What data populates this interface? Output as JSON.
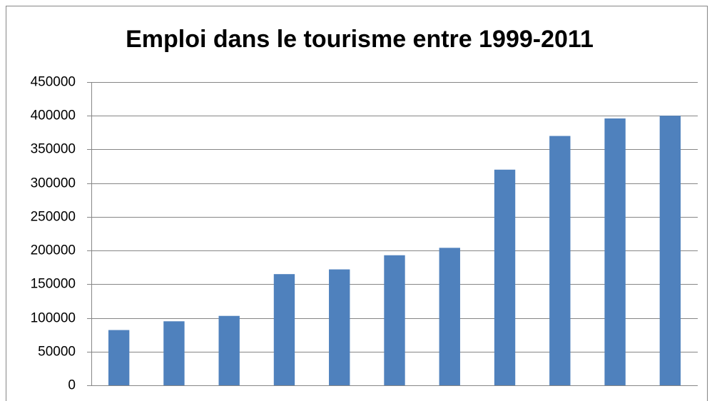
{
  "chart_data": {
    "type": "bar",
    "title": "Emploi dans le tourisme entre 1999-2011",
    "categories": [
      null,
      null,
      null,
      null,
      null,
      null,
      null,
      null,
      null,
      null,
      null
    ],
    "values": [
      82000,
      95000,
      103000,
      165000,
      172000,
      193000,
      204000,
      320000,
      370000,
      396000,
      400000
    ],
    "color": "#4f81bd",
    "ylim": [
      0,
      450000
    ],
    "yticks": [
      0,
      50000,
      100000,
      150000,
      200000,
      250000,
      300000,
      350000,
      400000,
      450000
    ],
    "grid": true
  }
}
